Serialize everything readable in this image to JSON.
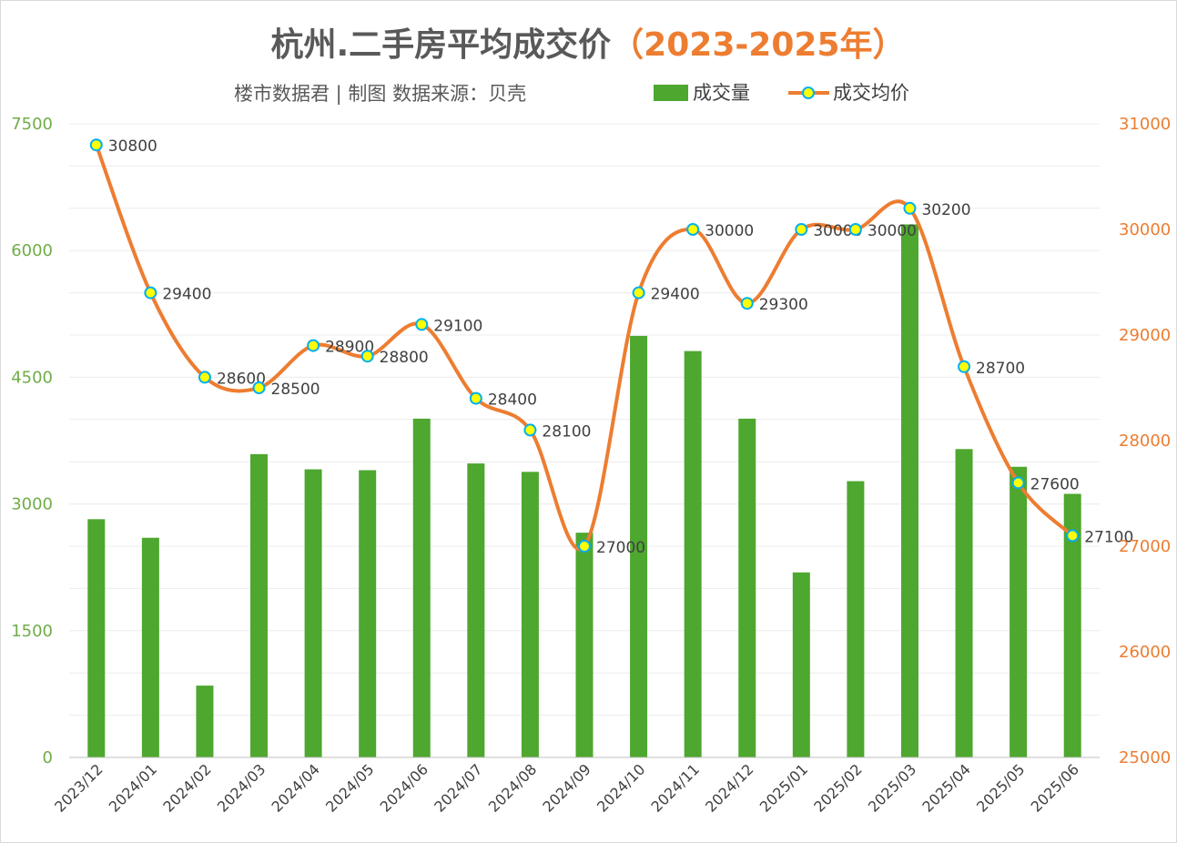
{
  "chart_data": {
    "type": "bar+line",
    "title": "杭州.二手房平均成交价",
    "title_year": "（2023-2025年）",
    "subtitle": "楼市数据君 | 制图  数据来源：贝壳",
    "categories": [
      "2023/12",
      "2024/01",
      "2024/02",
      "2024/03",
      "2024/04",
      "2024/05",
      "2024/06",
      "2024/07",
      "2024/08",
      "2024/09",
      "2024/10",
      "2024/11",
      "2024/12",
      "2025/01",
      "2025/02",
      "2025/03",
      "2025/04",
      "2025/05",
      "2025/06"
    ],
    "series": [
      {
        "name": "成交量",
        "type": "bar",
        "axis": "left",
        "color": "#4EA72E",
        "values": [
          2820,
          2600,
          850,
          3590,
          3410,
          3400,
          4010,
          3480,
          3380,
          2660,
          4990,
          4810,
          4010,
          2190,
          3270,
          6310,
          3650,
          3440,
          3120
        ]
      },
      {
        "name": "成交均价",
        "type": "line",
        "axis": "right",
        "color": "#ED7D31",
        "marker_fill": "#FFFF00",
        "marker_stroke": "#00B0F0",
        "values": [
          30800,
          29400,
          28600,
          28500,
          28900,
          28800,
          29100,
          28400,
          28100,
          27000,
          29400,
          30000,
          29300,
          30000,
          30000,
          30200,
          28700,
          27600,
          27100
        ],
        "labels": [
          "30800",
          "29400",
          "28600",
          "28500",
          "28900",
          "28800",
          "29100",
          "28400",
          "28100",
          "27000",
          "29400",
          "30000",
          "29300",
          "30000",
          "30000",
          "30200",
          "28700",
          "27600",
          "27100"
        ]
      }
    ],
    "y_left": {
      "min": 0,
      "max": 7500,
      "ticks": [
        "0",
        "1500",
        "3000",
        "4500",
        "6000",
        "7500"
      ],
      "color": "#70AD47"
    },
    "y_right": {
      "min": 25000,
      "max": 31000,
      "ticks": [
        "25000",
        "26000",
        "27000",
        "28000",
        "29000",
        "30000",
        "31000"
      ],
      "color": "#ED7D31"
    },
    "grid": true,
    "legend_position": "top"
  }
}
